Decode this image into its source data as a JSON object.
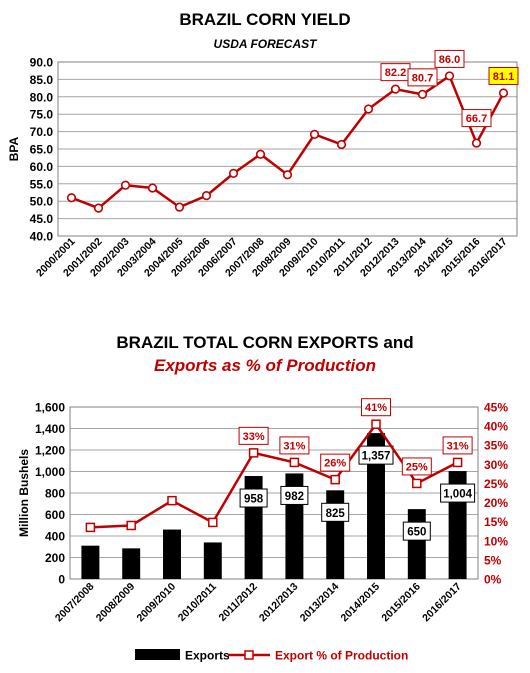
{
  "chart_data": [
    {
      "type": "line",
      "title": "BRAZIL CORN YIELD",
      "subtitle": "USDA FORECAST",
      "ylabel": "BPA",
      "ylim": [
        40.0,
        90.0
      ],
      "ytick_step": 5,
      "grid": true,
      "x": [
        "2000/2001",
        "2001/2002",
        "2002/2003",
        "2003/2004",
        "2004/2005",
        "2005/2006",
        "2006/2007",
        "2007/2008",
        "2008/2009",
        "2009/2010",
        "2010/2011",
        "2011/2012",
        "2012/2013",
        "2013/2014",
        "2014/2015",
        "2015/2016",
        "2016/2017"
      ],
      "series": [
        {
          "values": [
            51.0,
            48.0,
            54.6,
            53.8,
            48.3,
            51.6,
            58.0,
            63.5,
            57.6,
            69.2,
            66.3,
            76.5,
            82.2,
            80.7,
            86.0,
            66.7,
            81.1
          ],
          "color": "#c00000"
        }
      ],
      "labels": [
        {
          "index": 12,
          "text": "82.2"
        },
        {
          "index": 13,
          "text": "80.7"
        },
        {
          "index": 14,
          "text": "86.0"
        },
        {
          "index": 15,
          "text": "66.7"
        },
        {
          "index": 16,
          "text": "81.1",
          "highlight": "#ffff00"
        }
      ]
    },
    {
      "type": "bar",
      "title": "BRAZIL TOTAL CORN EXPORTS and",
      "subtitle": "Exports as % of Production",
      "ylabel": "Million Bushels",
      "ylim": [
        0,
        1600
      ],
      "y2lim": [
        0,
        45
      ],
      "grid": true,
      "legend": "bottom",
      "categories": [
        "2007/2008",
        "2008/2009",
        "2009/2010",
        "2010/2011",
        "2011/2012",
        "2012/2013",
        "2013/2014",
        "2014/2015",
        "2015/2016",
        "2016/2017"
      ],
      "series": [
        {
          "name": "Exports",
          "type": "bar",
          "color": "#000000",
          "values": [
            310,
            285,
            460,
            340,
            958,
            982,
            825,
            1357,
            650,
            1004
          ],
          "labels": [
            "",
            "",
            "",
            "",
            "958",
            "982",
            "825",
            "1,357",
            "650",
            "1,004"
          ]
        },
        {
          "name": "Export % of Production",
          "type": "line",
          "axis": "right",
          "color": "#c00000",
          "values": [
            13.5,
            14.0,
            20.5,
            14.8,
            33.0,
            30.5,
            26.0,
            40.5,
            25.0,
            30.5
          ],
          "labels": [
            "",
            "",
            "",
            "",
            "33%",
            "31%",
            "26%",
            "41%",
            "25%",
            "31%"
          ]
        }
      ]
    }
  ]
}
